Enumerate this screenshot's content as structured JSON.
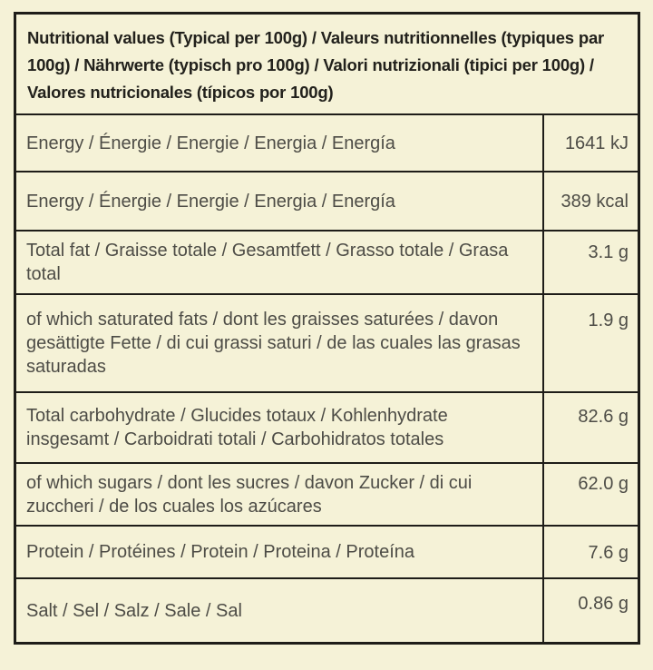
{
  "colors": {
    "background": "#f5f2d7",
    "border": "#1e1d19",
    "body_text": "#4d4c46",
    "header_text": "#22211c"
  },
  "table": {
    "header": "Nutritional values (Typical per 100g) / Valeurs nutritionnelles (typiques par 100g) / Nährwerte (typisch pro 100g) / Valori nutrizionali (tipici per 100g) / Valores nutricionales (típicos por 100g)",
    "rows": [
      {
        "label": "Energy / Énergie / Energie / Energia / Energía",
        "value": "1641 kJ"
      },
      {
        "label": "Energy / Énergie / Energie / Energia / Energía",
        "value": "389 kcal"
      },
      {
        "label": "Total fat / Graisse totale / Gesamtfett / Grasso totale / Grasa total",
        "value": "3.1 g"
      },
      {
        "label": "of which saturated fats / dont les graisses saturées / davon gesättigte Fette / di cui grassi saturi / de las cuales las grasas saturadas",
        "value": "1.9 g"
      },
      {
        "label": "Total carbohydrate / Glucides totaux / Kohlenhydrate insgesamt / Carboidrati totali / Carbohidratos totales",
        "value": "82.6 g"
      },
      {
        "label": "of which sugars / dont les sucres / davon Zucker / di cui zuccheri / de los cuales los azúcares",
        "value": "62.0 g"
      },
      {
        "label": "Protein / Protéines / Protein / Proteina / Proteína",
        "value": "7.6 g"
      },
      {
        "label": "Salt / Sel / Salz / Sale / Sal",
        "value": "0.86 g"
      }
    ]
  }
}
